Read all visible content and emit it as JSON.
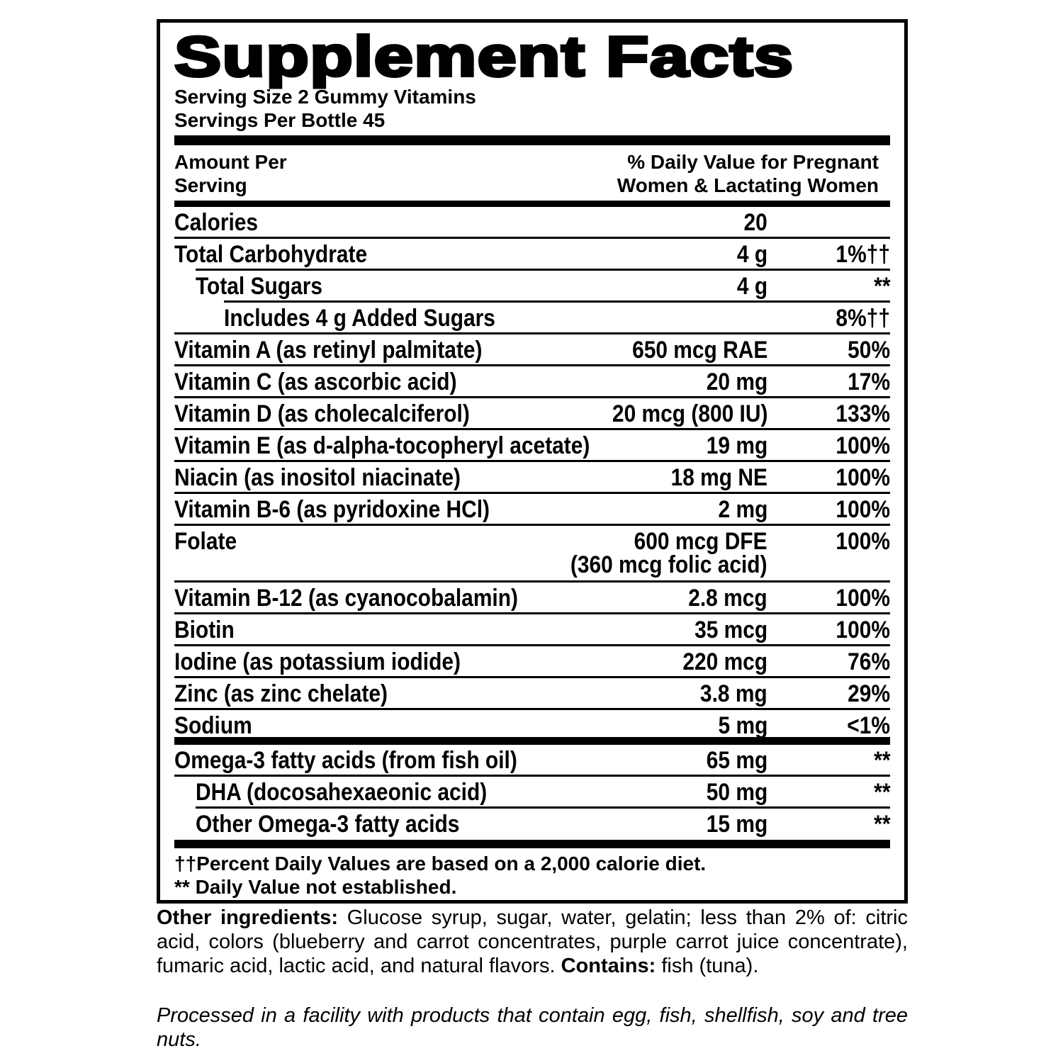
{
  "title": "Supplement Facts",
  "serving_size": "Serving Size 2 Gummy Vitamins",
  "servings_per_container": "Servings Per Bottle 45",
  "column_headers": {
    "amount": [
      "Amount Per",
      "Serving"
    ],
    "daily_value": [
      "% Daily Value for Pregnant",
      "Women & Lactating Women"
    ]
  },
  "nutrients": [
    {
      "name": "Calories",
      "amount": "20"
    },
    {
      "name": "Total Carbohydrate",
      "amount": "4 g",
      "daily_value": "1%††"
    },
    {
      "name": "Total Sugars",
      "amount": "4 g",
      "daily_value": "**"
    },
    {
      "name": "Includes 4 g Added Sugars",
      "daily_value": "8%††"
    },
    {
      "name": "Vitamin A (as retinyl palmitate)",
      "amount": "650 mcg RAE",
      "daily_value": "50%"
    },
    {
      "name": "Vitamin C (as ascorbic acid)",
      "amount": "20 mg",
      "daily_value": "17%"
    },
    {
      "name": "Vitamin D (as cholecalciferol)",
      "amount": "20 mcg (800 IU)",
      "daily_value": "133%"
    },
    {
      "name": "Vitamin E (as d-alpha-tocopheryl acetate)",
      "amount": "19 mg",
      "daily_value": "100%"
    },
    {
      "name": "Niacin (as inositol niacinate)",
      "amount": "18 mg NE",
      "daily_value": "100%"
    },
    {
      "name": "Vitamin B-6 (as pyridoxine HCl)",
      "amount": "2 mg",
      "daily_value": "100%"
    },
    {
      "name": "Folate",
      "amount": "600 mcg DFE",
      "amount_note": "(360 mcg folic acid)",
      "daily_value": "100%"
    },
    {
      "name": "Vitamin B-12 (as cyanocobalamin)",
      "amount": "2.8 mcg",
      "daily_value": "100%"
    },
    {
      "name": "Biotin",
      "amount": "35 mcg",
      "daily_value": "100%"
    },
    {
      "name": "Iodine (as potassium iodide)",
      "amount": "220 mcg",
      "daily_value": "76%"
    },
    {
      "name": "Zinc (as zinc chelate)",
      "amount": "3.8 mg",
      "daily_value": "29%"
    },
    {
      "name": "Sodium",
      "amount": "5 mg",
      "daily_value": "<1%"
    }
  ],
  "fatty_acids": [
    {
      "name": "Omega-3 fatty acids (from fish oil)",
      "amount": "65 mg",
      "daily_value": "**"
    },
    {
      "name": "DHA (docosahexaeonic acid)",
      "amount": "50 mg",
      "daily_value": "**"
    },
    {
      "name": "Other Omega-3 fatty acids",
      "amount": "15 mg",
      "daily_value": "**"
    }
  ],
  "footnotes": [
    "††Percent Daily Values are based on a 2,000 calorie diet.",
    "** Daily Value not established."
  ],
  "other_ingredients": {
    "label": "Other ingredients:",
    "text": "Glucose syrup, sugar, water, gelatin; less than 2% of: citric acid, colors (blueberry and carrot concentrates, purple carrot juice concentrate), fumaric acid, lactic acid, and natural flavors.",
    "contains_label": "Contains:",
    "contains": "fish (tuna)."
  },
  "allergen_statement": "Processed in a facility with products that contain egg, fish, shellfish, soy and tree nuts."
}
